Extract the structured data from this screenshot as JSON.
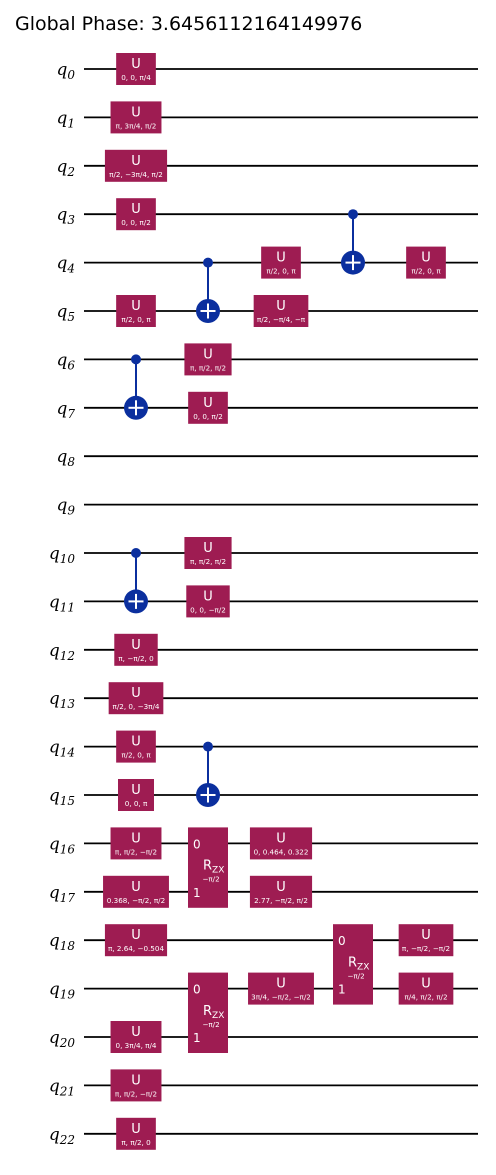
{
  "title": "Global Phase: 3.6456112164149976",
  "qubits": [
    "0",
    "1",
    "2",
    "3",
    "4",
    "5",
    "6",
    "7",
    "8",
    "9",
    "10",
    "11",
    "12",
    "13",
    "14",
    "15",
    "16",
    "17",
    "18",
    "19",
    "20",
    "21",
    "22"
  ],
  "gates": [
    {
      "type": "U",
      "q": 0,
      "col": 0,
      "params": "0, 0, π/4"
    },
    {
      "type": "U",
      "q": 1,
      "col": 0,
      "params": "π, 3π/4, π/2"
    },
    {
      "type": "U",
      "q": 2,
      "col": 0,
      "params": "π/2, −3π/4, π/2"
    },
    {
      "type": "U",
      "q": 3,
      "col": 0,
      "params": "0, 0, π/2"
    },
    {
      "type": "U",
      "q": 5,
      "col": 0,
      "params": "π/2, 0, π"
    },
    {
      "type": "CX",
      "control": 6,
      "target": 7,
      "col": 0
    },
    {
      "type": "CX",
      "control": 10,
      "target": 11,
      "col": 0
    },
    {
      "type": "U",
      "q": 12,
      "col": 0,
      "params": "π, −π/2, 0"
    },
    {
      "type": "U",
      "q": 13,
      "col": 0,
      "params": "π/2, 0, −3π/4"
    },
    {
      "type": "U",
      "q": 14,
      "col": 0,
      "params": "π/2, 0, π"
    },
    {
      "type": "U",
      "q": 15,
      "col": 0,
      "params": "0, 0, π"
    },
    {
      "type": "U",
      "q": 16,
      "col": 0,
      "params": "π, π/2, −π/2"
    },
    {
      "type": "U",
      "q": 17,
      "col": 0,
      "params": "0.368, −π/2, π/2"
    },
    {
      "type": "U",
      "q": 18,
      "col": 0,
      "params": "π, 2.64, −0.504"
    },
    {
      "type": "U",
      "q": 20,
      "col": 0,
      "params": "0, 3π/4, π/4"
    },
    {
      "type": "U",
      "q": 21,
      "col": 0,
      "params": "π, π/2, −π/2"
    },
    {
      "type": "U",
      "q": 22,
      "col": 0,
      "params": "π, π/2, 0"
    },
    {
      "type": "CX",
      "control": 4,
      "target": 5,
      "col": 1
    },
    {
      "type": "U",
      "q": 6,
      "col": 1,
      "params": "π, π/2, π/2"
    },
    {
      "type": "U",
      "q": 7,
      "col": 1,
      "params": "0, 0, π/2"
    },
    {
      "type": "U",
      "q": 10,
      "col": 1,
      "params": "π, π/2, π/2"
    },
    {
      "type": "U",
      "q": 11,
      "col": 1,
      "params": "0, 0, −π/2"
    },
    {
      "type": "CX",
      "control": 14,
      "target": 15,
      "col": 1
    },
    {
      "type": "RZX",
      "q0": 16,
      "q1": 17,
      "col": 1,
      "param": "−π/2",
      "label": "R",
      "sub": "ZX",
      "idx0": "0",
      "idx1": "1"
    },
    {
      "type": "RZX",
      "q0": 19,
      "q1": 20,
      "col": 1,
      "param": "−π/2",
      "label": "R",
      "sub": "ZX",
      "idx0": "0",
      "idx1": "1"
    },
    {
      "type": "U",
      "q": 4,
      "col": 2,
      "params": "π/2, 0, π"
    },
    {
      "type": "U",
      "q": 5,
      "col": 2,
      "params": "π/2, −π/4, −π"
    },
    {
      "type": "U",
      "q": 16,
      "col": 2,
      "params": "0, 0.464, 0.322"
    },
    {
      "type": "U",
      "q": 17,
      "col": 2,
      "params": "2.77, −π/2, π/2"
    },
    {
      "type": "U",
      "q": 19,
      "col": 2,
      "params": "3π/4, −π/2, −π/2"
    },
    {
      "type": "CX",
      "control": 3,
      "target": 4,
      "col": 3
    },
    {
      "type": "RZX",
      "q0": 18,
      "q1": 19,
      "col": 3,
      "param": "−π/2",
      "label": "R",
      "sub": "ZX",
      "idx0": "0",
      "idx1": "1"
    },
    {
      "type": "U",
      "q": 4,
      "col": 4,
      "params": "π/2, 0, π"
    },
    {
      "type": "U",
      "q": 18,
      "col": 4,
      "params": "π, −π/2, −π/2"
    },
    {
      "type": "U",
      "q": 19,
      "col": 4,
      "params": "π/4, π/2, π/2"
    }
  ],
  "colors": {
    "gate": "#9e1c52",
    "cx": "#0b2f9e",
    "wire": "#000000"
  }
}
